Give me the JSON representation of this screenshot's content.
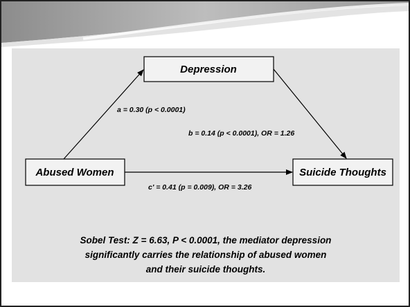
{
  "nodes": [
    {
      "label": "Depression"
    },
    {
      "label": "Abused Women"
    },
    {
      "label": "Suicide Thoughts"
    }
  ],
  "edges": [
    {
      "label": "a = 0.30 (p < 0.0001)"
    },
    {
      "label": "b = 0.14 (p < 0.0001), OR = 1.26"
    },
    {
      "label": "c' = 0.41 (p = 0.009), OR = 3.26"
    }
  ],
  "note": {
    "lines": [
      "Sobel Test:  Z = 6.63, P < 0.0001, the mediator depression",
      "significantly carries the relationship of abused women",
      "and their suicide thoughts."
    ]
  }
}
